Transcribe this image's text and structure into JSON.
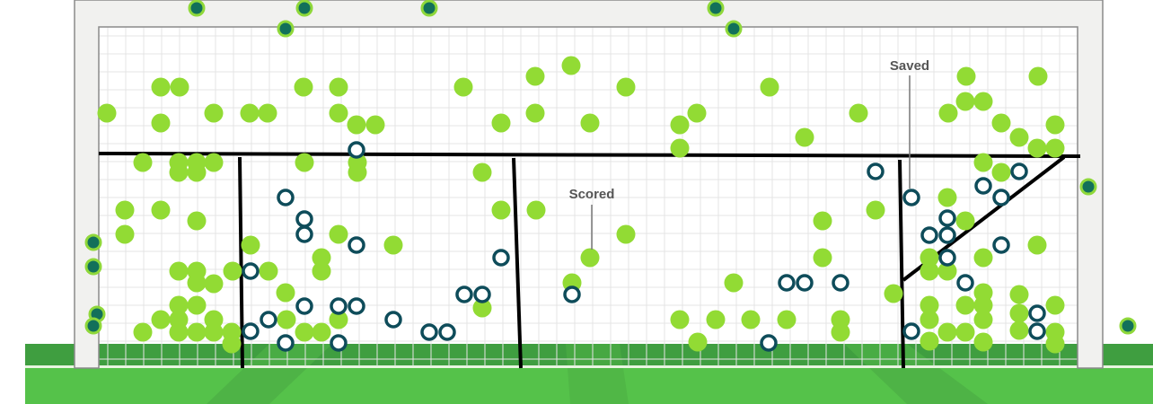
{
  "annotations": {
    "saved": "Saved",
    "scored": "Scored"
  }
}
